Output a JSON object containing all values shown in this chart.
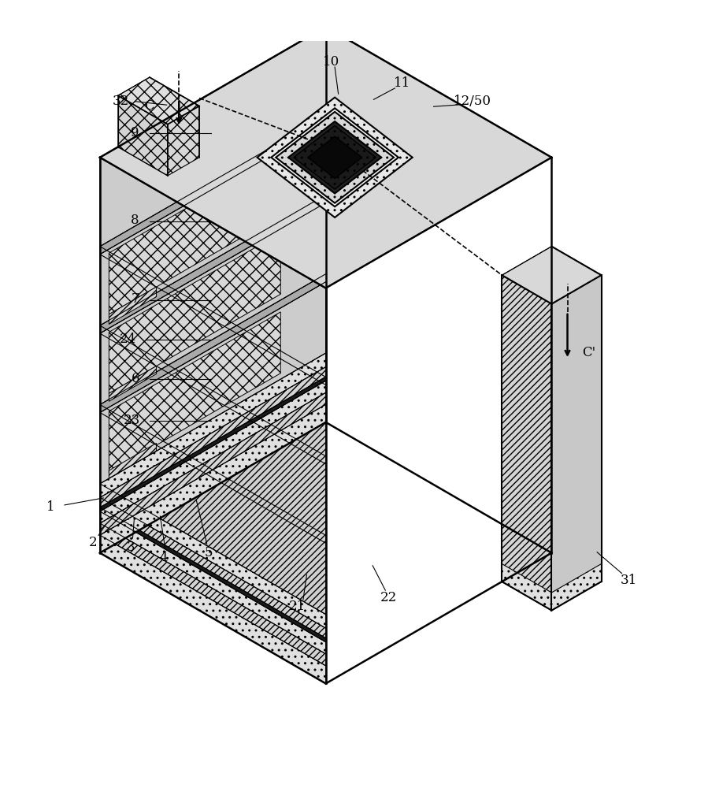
{
  "bg": "#ffffff",
  "fs": 12,
  "bx": 0.46,
  "by": 0.09,
  "sx": 0.32,
  "sy": 0.185,
  "sz": 0.56,
  "col_top": "#d8d8d8",
  "col_left_plain": "#d0d0d0",
  "col_right_plain": "#c0c0c0",
  "col_cross": "#d8d8d8",
  "col_dots": "#e2e2e2",
  "col_diag_left": "#d4d4d4",
  "col_dark": "#111111",
  "col_right_face": "#c8c8c8"
}
